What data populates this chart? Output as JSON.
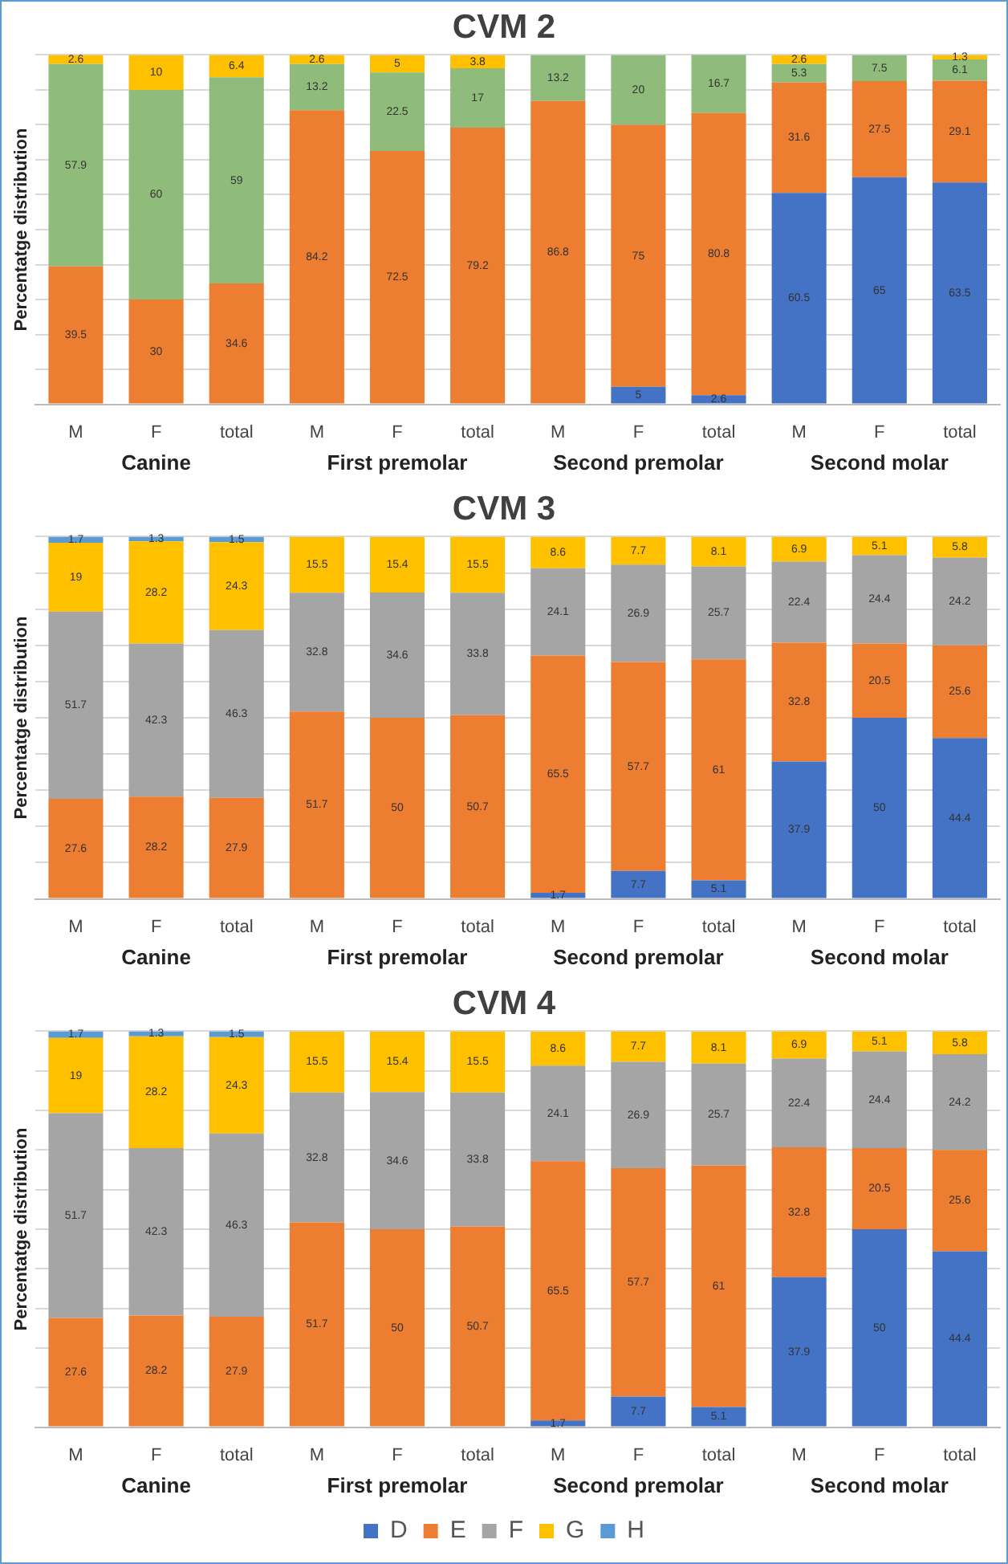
{
  "chart_data": [
    {
      "type": "bar",
      "title": "CVM 2",
      "ylabel": "Percentatge distribution",
      "stacked": true,
      "data_labels": true,
      "grid": "y",
      "tick_labels": "x",
      "legend": false,
      "categories": [
        "M",
        "F",
        "total",
        "M",
        "F",
        "total",
        "M",
        "F",
        "total",
        "M",
        "F",
        "total"
      ],
      "annotations": [
        "Canine",
        "First premolar",
        "Second premolar",
        "Second molar"
      ],
      "ylim": [
        0,
        100
      ],
      "yticks": [
        {
          "value": 0,
          "label": null
        },
        {
          "value": 10,
          "label": null
        },
        {
          "value": 20,
          "label": null
        },
        {
          "value": 30,
          "label": null
        },
        {
          "value": 40,
          "label": null
        },
        {
          "value": 50,
          "label": null
        },
        {
          "value": 60,
          "label": null
        },
        {
          "value": 70,
          "label": null
        },
        {
          "value": 80,
          "label": null
        },
        {
          "value": 90,
          "label": null
        },
        {
          "value": 100,
          "label": null
        }
      ],
      "series": [
        {
          "color": "#4472c4",
          "values": [
            null,
            null,
            null,
            null,
            null,
            null,
            null,
            5,
            2.6,
            60.5,
            65,
            63.5
          ]
        },
        {
          "color": "#ed7d31",
          "values": [
            39.5,
            30,
            34.6,
            84.2,
            72.5,
            79.2,
            86.8,
            75,
            80.8,
            31.6,
            27.5,
            29.1
          ]
        },
        {
          "color": "#8fbc7a",
          "values": [
            57.9,
            60,
            59.0,
            13.2,
            22.5,
            17.0,
            13.2,
            20,
            16.7,
            5.3,
            7.5,
            6.1
          ]
        },
        {
          "color": "#ffc000",
          "values": [
            2.6,
            10,
            6.4,
            2.6,
            5,
            3.8,
            null,
            null,
            null,
            2.6,
            null,
            1.3
          ]
        }
      ]
    },
    {
      "type": "bar",
      "title": "CVM 3",
      "ylabel": "Percentatge distribution",
      "stacked": true,
      "data_labels": true,
      "grid": "y",
      "tick_labels": "x",
      "legend": false,
      "categories": [
        "M",
        "F",
        "total",
        "M",
        "F",
        "total",
        "M",
        "F",
        "total",
        "M",
        "F",
        "total"
      ],
      "annotations": [
        "Canine",
        "First premolar",
        "Second premolar",
        "Second molar"
      ],
      "ylim": [
        0,
        100
      ],
      "yticks": [
        {
          "value": 0,
          "label": null
        },
        {
          "value": 10,
          "label": null
        },
        {
          "value": 20,
          "label": null
        },
        {
          "value": 30,
          "label": null
        },
        {
          "value": 40,
          "label": null
        },
        {
          "value": 50,
          "label": null
        },
        {
          "value": 60,
          "label": null
        },
        {
          "value": 70,
          "label": null
        },
        {
          "value": 80,
          "label": null
        },
        {
          "value": 90,
          "label": null
        },
        {
          "value": 100,
          "label": null
        }
      ],
      "series": [
        {
          "color": "#4472c4",
          "values": [
            null,
            null,
            null,
            null,
            null,
            null,
            1.7,
            7.7,
            5.1,
            37.9,
            50.0,
            44.4
          ]
        },
        {
          "color": "#ed7d31",
          "values": [
            27.6,
            28.2,
            27.9,
            51.7,
            50.0,
            50.7,
            65.5,
            57.7,
            61.0,
            32.8,
            20.5,
            25.6
          ]
        },
        {
          "color": "#a5a5a5",
          "values": [
            51.7,
            42.3,
            46.3,
            32.8,
            34.6,
            33.8,
            24.1,
            26.9,
            25.7,
            22.4,
            24.4,
            24.2
          ]
        },
        {
          "color": "#ffc000",
          "values": [
            19.0,
            28.2,
            24.3,
            15.5,
            15.4,
            15.5,
            8.6,
            7.7,
            8.1,
            6.9,
            5.1,
            5.8
          ]
        },
        {
          "color": "#5b9bd5",
          "values": [
            1.7,
            1.3,
            1.5,
            null,
            null,
            null,
            null,
            null,
            null,
            null,
            null,
            null
          ]
        }
      ]
    },
    {
      "type": "bar",
      "title": "CVM 4",
      "ylabel": "Percentatge distribution",
      "stacked": true,
      "data_labels": true,
      "grid": "y",
      "tick_labels": "x",
      "legend": "bottom",
      "categories": [
        "M",
        "F",
        "total",
        "M",
        "F",
        "total",
        "M",
        "F",
        "total",
        "M",
        "F",
        "total"
      ],
      "annotations": [
        "Canine",
        "First premolar",
        "Second premolar",
        "Second molar"
      ],
      "ylim": [
        0,
        100
      ],
      "yticks": [
        {
          "value": 0,
          "label": null
        },
        {
          "value": 10,
          "label": null
        },
        {
          "value": 20,
          "label": null
        },
        {
          "value": 30,
          "label": null
        },
        {
          "value": 40,
          "label": null
        },
        {
          "value": 50,
          "label": null
        },
        {
          "value": 60,
          "label": null
        },
        {
          "value": 70,
          "label": null
        },
        {
          "value": 80,
          "label": null
        },
        {
          "value": 90,
          "label": null
        },
        {
          "value": 100,
          "label": null
        }
      ],
      "series": [
        {
          "name": "D",
          "color": "#4472c4",
          "values": [
            null,
            null,
            null,
            null,
            null,
            null,
            1.7,
            7.7,
            5.1,
            37.9,
            50.0,
            44.4
          ]
        },
        {
          "name": "E",
          "color": "#ed7d31",
          "values": [
            27.6,
            28.2,
            27.9,
            51.7,
            50.0,
            50.7,
            65.5,
            57.7,
            61.0,
            32.8,
            20.5,
            25.6
          ]
        },
        {
          "name": "F",
          "color": "#a5a5a5",
          "values": [
            51.7,
            42.3,
            46.3,
            32.8,
            34.6,
            33.8,
            24.1,
            26.9,
            25.7,
            22.4,
            24.4,
            24.2
          ]
        },
        {
          "name": "G",
          "color": "#ffc000",
          "values": [
            19.0,
            28.2,
            24.3,
            15.5,
            15.4,
            15.5,
            8.6,
            7.7,
            8.1,
            6.9,
            5.1,
            5.8
          ]
        },
        {
          "name": "H",
          "color": "#5b9bd5",
          "values": [
            1.7,
            1.3,
            1.5,
            null,
            null,
            null,
            null,
            null,
            null,
            null,
            null,
            null
          ]
        }
      ]
    }
  ]
}
